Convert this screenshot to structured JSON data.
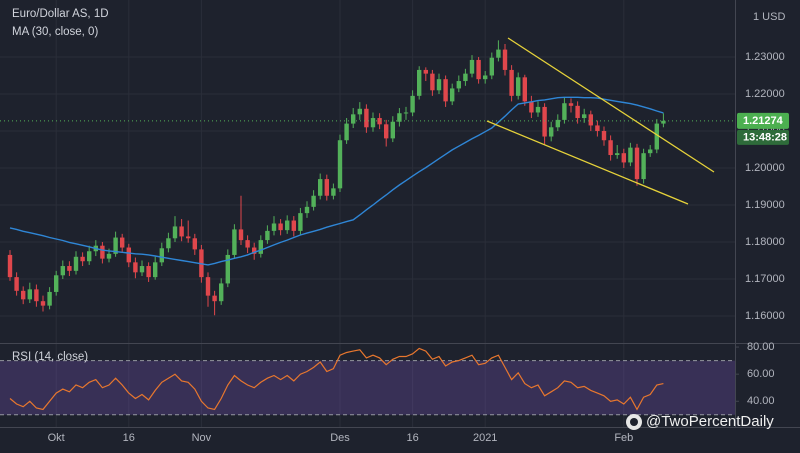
{
  "chart_data": [
    {
      "type": "candlestick",
      "title": "Euro/Dollar AS, 1D",
      "unit_label": "1 USD",
      "up_color": "#53b15a",
      "down_color": "#e0474c",
      "categories": [
        null,
        null,
        null,
        null,
        null,
        null,
        null,
        "Okt",
        null,
        null,
        null,
        null,
        null,
        null,
        null,
        null,
        null,
        null,
        "16",
        null,
        null,
        null,
        null,
        null,
        null,
        null,
        null,
        null,
        null,
        "Nov",
        null,
        null,
        null,
        null,
        null,
        null,
        null,
        null,
        null,
        null,
        null,
        null,
        null,
        null,
        null,
        null,
        null,
        null,
        null,
        null,
        "Des",
        null,
        null,
        null,
        null,
        null,
        null,
        null,
        null,
        null,
        null,
        "16",
        null,
        null,
        null,
        null,
        null,
        null,
        null,
        null,
        null,
        null,
        "2021",
        null,
        null,
        null,
        null,
        null,
        null,
        null,
        null,
        null,
        null,
        null,
        null,
        null,
        null,
        null,
        null,
        null,
        null,
        null,
        null,
        "Feb",
        null,
        null,
        null,
        null,
        null,
        null
      ],
      "open": [
        1.1765,
        1.1705,
        1.1668,
        1.1645,
        1.1672,
        1.164,
        1.1628,
        1.1665,
        1.171,
        1.1735,
        1.1722,
        1.176,
        1.1748,
        1.1775,
        1.179,
        1.1755,
        1.1768,
        1.1812,
        1.1785,
        1.1745,
        1.1718,
        1.1735,
        1.1705,
        1.1745,
        1.1783,
        1.181,
        1.1842,
        1.1815,
        1.181,
        1.178,
        1.1705,
        1.1655,
        1.164,
        1.1688,
        1.1765,
        1.1834,
        1.1805,
        1.1785,
        1.1768,
        1.1805,
        1.183,
        1.185,
        1.1832,
        1.1858,
        1.183,
        1.1878,
        1.1895,
        1.1925,
        1.197,
        1.1925,
        1.1945,
        1.2075,
        1.212,
        1.2145,
        1.216,
        1.211,
        1.2135,
        1.2118,
        1.208,
        1.2125,
        1.2148,
        1.215,
        1.2195,
        1.2265,
        1.2255,
        1.221,
        1.224,
        1.218,
        1.2215,
        1.2235,
        1.2255,
        1.2292,
        1.224,
        1.225,
        1.2298,
        1.232,
        1.2265,
        1.2195,
        1.2245,
        1.218,
        1.215,
        1.2165,
        1.2085,
        1.211,
        1.213,
        1.2175,
        1.2168,
        1.2135,
        1.2145,
        1.2115,
        1.21,
        1.2075,
        1.2035,
        1.204,
        1.2015,
        1.2055,
        1.197,
        1.204,
        1.205,
        1.212
      ],
      "high": [
        1.1778,
        1.1718,
        1.168,
        1.169,
        1.1685,
        1.1655,
        1.1678,
        1.1722,
        1.175,
        1.1748,
        1.1775,
        1.1772,
        1.179,
        1.1805,
        1.18,
        1.1782,
        1.1828,
        1.1822,
        1.1795,
        1.1758,
        1.175,
        1.1745,
        1.176,
        1.1798,
        1.1825,
        1.187,
        1.1862,
        1.1858,
        1.1822,
        1.1792,
        1.1718,
        1.1668,
        1.1702,
        1.178,
        1.1848,
        1.1925,
        1.1818,
        1.1798,
        1.1818,
        1.1845,
        1.187,
        1.1862,
        1.1872,
        1.187,
        1.1892,
        1.191,
        1.194,
        1.1985,
        1.1982,
        1.1958,
        1.209,
        1.2135,
        1.2162,
        1.2178,
        1.2172,
        1.215,
        1.2148,
        1.213,
        1.214,
        1.2162,
        1.2165,
        1.221,
        1.2275,
        1.2272,
        1.2265,
        1.2255,
        1.225,
        1.2228,
        1.225,
        1.2268,
        1.2305,
        1.23,
        1.2262,
        1.2312,
        1.2345,
        1.2335,
        1.2278,
        1.2258,
        1.2252,
        1.2195,
        1.218,
        1.2175,
        1.2125,
        1.2145,
        1.219,
        1.2188,
        1.218,
        1.216,
        1.2155,
        1.2128,
        1.2112,
        1.2088,
        1.2062,
        1.2052,
        1.2068,
        1.2065,
        1.2052,
        1.2062,
        1.2132,
        1.2148
      ],
      "low": [
        1.1695,
        1.1655,
        1.1632,
        1.1635,
        1.1625,
        1.1612,
        1.1618,
        1.1655,
        1.17,
        1.1708,
        1.1712,
        1.1735,
        1.1738,
        1.1762,
        1.1742,
        1.1745,
        1.176,
        1.1772,
        1.1732,
        1.1702,
        1.1708,
        1.1692,
        1.1698,
        1.1735,
        1.1772,
        1.18,
        1.1802,
        1.1798,
        1.1765,
        1.169,
        1.1625,
        1.1602,
        1.163,
        1.1678,
        1.1755,
        1.1792,
        1.177,
        1.1752,
        1.1758,
        1.1795,
        1.1818,
        1.1818,
        1.1822,
        1.1815,
        1.182,
        1.1865,
        1.1885,
        1.1915,
        1.1912,
        1.1915,
        1.1935,
        1.2065,
        1.2108,
        1.213,
        1.2095,
        1.2098,
        1.2105,
        1.2058,
        1.207,
        1.2112,
        1.213,
        1.214,
        1.2185,
        1.2235,
        1.2195,
        1.22,
        1.2165,
        1.217,
        1.2205,
        1.2222,
        1.2245,
        1.2228,
        1.2228,
        1.224,
        1.2288,
        1.225,
        1.218,
        1.2185,
        1.2168,
        1.2135,
        1.2138,
        1.2062,
        1.2072,
        1.21,
        1.212,
        1.215,
        1.212,
        1.2122,
        1.21,
        1.2085,
        1.206,
        1.202,
        1.2025,
        1.2,
        1.2005,
        1.1952,
        1.1958,
        1.203,
        1.204,
        1.211
      ],
      "close": [
        1.1705,
        1.1668,
        1.1645,
        1.1672,
        1.164,
        1.1628,
        1.1665,
        1.171,
        1.1735,
        1.1722,
        1.176,
        1.1748,
        1.1775,
        1.179,
        1.1755,
        1.1768,
        1.1812,
        1.1785,
        1.1745,
        1.1718,
        1.1735,
        1.1705,
        1.1745,
        1.1783,
        1.181,
        1.1842,
        1.1815,
        1.181,
        1.178,
        1.1705,
        1.1655,
        1.164,
        1.1688,
        1.1765,
        1.1834,
        1.1805,
        1.1785,
        1.1768,
        1.1805,
        1.183,
        1.185,
        1.1832,
        1.1858,
        1.183,
        1.1878,
        1.1895,
        1.1925,
        1.197,
        1.1925,
        1.1945,
        1.2075,
        1.212,
        1.2145,
        1.216,
        1.211,
        1.2135,
        1.2118,
        1.208,
        1.2125,
        1.2148,
        1.215,
        1.2195,
        1.2265,
        1.2255,
        1.221,
        1.224,
        1.218,
        1.2215,
        1.2235,
        1.2255,
        1.2292,
        1.224,
        1.225,
        1.2298,
        1.232,
        1.2265,
        1.2195,
        1.2245,
        1.218,
        1.215,
        1.2165,
        1.2085,
        1.211,
        1.213,
        1.2175,
        1.2168,
        1.2135,
        1.2145,
        1.2115,
        1.21,
        1.2075,
        1.2035,
        1.204,
        1.2015,
        1.2055,
        1.197,
        1.204,
        1.205,
        1.212,
        1.21274
      ],
      "series": [
        {
          "name": "MA (30, close, 0)",
          "color": "#2f86d6",
          "values": [
            1.1838,
            1.1834,
            1.1829,
            1.1825,
            1.1821,
            1.1817,
            1.1812,
            1.1808,
            1.1804,
            1.1799,
            1.1795,
            1.1791,
            1.1787,
            1.1782,
            1.1778,
            1.1776,
            1.1774,
            1.1772,
            1.177,
            1.1768,
            1.1767,
            1.1765,
            1.1762,
            1.1759,
            1.1756,
            1.1753,
            1.175,
            1.1747,
            1.1744,
            1.1741,
            1.1738,
            1.1742,
            1.1747,
            1.1751,
            1.1756,
            1.176,
            1.1765,
            1.1772,
            1.1778,
            1.1785,
            1.1792,
            1.1799,
            1.1805,
            1.1812,
            1.1819,
            1.1824,
            1.1829,
            1.1834,
            1.184,
            1.1845,
            1.185,
            1.1855,
            1.186,
            1.1873,
            1.1887,
            1.19,
            1.1914,
            1.1927,
            1.1941,
            1.1954,
            1.1966,
            1.1978,
            1.199,
            1.2001,
            1.2013,
            1.2025,
            1.2037,
            1.2049,
            1.2059,
            1.2069,
            1.2079,
            1.2088,
            1.2098,
            1.2108,
            1.2124,
            1.214,
            1.2157,
            1.2173,
            1.2176,
            1.2179,
            1.2182,
            1.2184,
            1.2187,
            1.219,
            1.2191,
            1.2191,
            1.2191,
            1.219,
            1.219,
            1.2189,
            1.2186,
            1.2183,
            1.218,
            1.2177,
            1.2174,
            1.217,
            1.2165,
            1.216,
            1.2154,
            1.2149
          ]
        }
      ],
      "ylim": [
        1.1527,
        1.2454
      ],
      "yticks": [
        {
          "value": 1.16,
          "label": "1.16000"
        },
        {
          "value": 1.17,
          "label": "1.17000"
        },
        {
          "value": 1.18,
          "label": "1.18000"
        },
        {
          "value": 1.19,
          "label": "1.19000"
        },
        {
          "value": 1.2,
          "label": "1.20000"
        },
        {
          "value": 1.21,
          "label": "1.21000"
        },
        {
          "value": 1.22,
          "label": "1.22000"
        },
        {
          "value": 1.23,
          "label": "1.23000"
        }
      ],
      "grid": true,
      "last_price": 1.21274,
      "countdown": "13:48:28"
    },
    {
      "type": "line",
      "title": "RSI (14, close)",
      "color": "#e8772e",
      "band_color": "#7e57c2",
      "bands": [
        30,
        70
      ],
      "values": [
        42,
        38,
        36,
        40,
        35,
        34,
        40,
        46,
        49,
        47,
        52,
        50,
        54,
        56,
        50,
        52,
        57,
        52,
        46,
        42,
        45,
        41,
        48,
        54,
        57,
        60,
        55,
        54,
        49,
        40,
        35,
        34,
        42,
        52,
        59,
        55,
        52,
        50,
        54,
        57,
        59,
        56,
        59,
        55,
        60,
        62,
        65,
        69,
        62,
        64,
        74,
        76,
        77,
        78,
        72,
        74,
        72,
        67,
        71,
        73,
        73,
        75,
        79,
        77,
        71,
        73,
        66,
        69,
        70,
        72,
        74,
        67,
        68,
        72,
        74,
        65,
        56,
        61,
        53,
        50,
        52,
        44,
        47,
        50,
        55,
        54,
        50,
        51,
        48,
        46,
        44,
        40,
        41,
        38,
        43,
        34,
        43,
        45,
        52,
        53
      ],
      "ylim": [
        21,
        83
      ],
      "yticks": [
        {
          "value": 40,
          "label": "40.00"
        },
        {
          "value": 60,
          "label": "60.00"
        },
        {
          "value": 80,
          "label": "80.00"
        }
      ],
      "watermark": "@TwoPercentDaily"
    }
  ]
}
